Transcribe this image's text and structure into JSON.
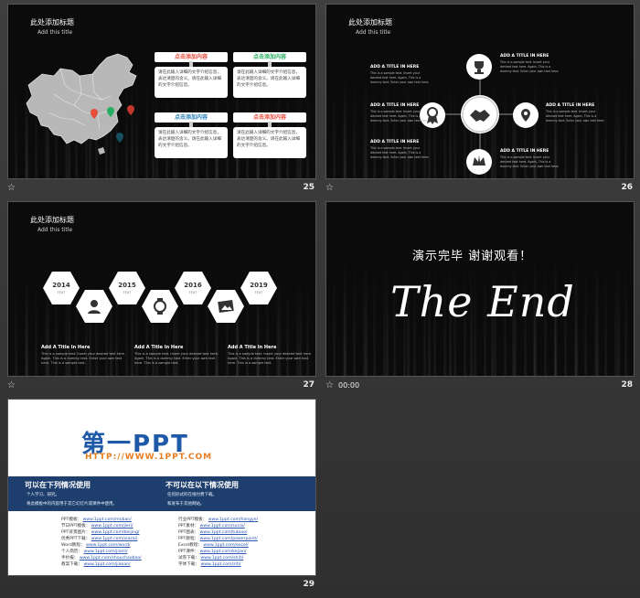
{
  "slides": [
    {
      "number": "25",
      "title": "此处添加标题",
      "subtitle": "Add this title",
      "cards": [
        {
          "header": "点击添加内容",
          "header_color": "#e74c3c",
          "body": "请在此输入详细的文字介绍信息，表达清楚的含义。请在此输入详细的文字介绍信息。"
        },
        {
          "header": "点击添加内容",
          "header_color": "#27ae60",
          "body": "请在此输入详细的文字介绍信息，表达清楚的含义。请在此输入详细的文字介绍信息。"
        },
        {
          "header": "点击添加内容",
          "header_color": "#2980b9",
          "body": "请在此输入详细的文字介绍信息，表达清楚的含义。请在此输入详细的文字介绍信息。"
        },
        {
          "header": "点击添加内容",
          "header_color": "#e74c3c",
          "body": "请在此输入详细的文字介绍信息，表达清楚的含义。请在此输入详细的文字介绍信息。"
        }
      ]
    },
    {
      "number": "26",
      "title": "此处添加标题",
      "subtitle": "Add this title",
      "blocks": [
        {
          "title": "ADD A TITLE IN HERE",
          "desc": "This is a sample text. Insert your desired text here. Again, This is a dummy text. Enter your own text here."
        },
        {
          "title": "ADD A TITLE IN HERE",
          "desc": "This is a sample text. Insert your desired text here. Again, This is a dummy text. Enter your own text here."
        },
        {
          "title": "ADD A TITLE IN HERE",
          "desc": "This is a sample text. Insert your desired text here. Again, This is a dummy text. Enter your own text here."
        },
        {
          "title": "ADD A TITLE IN HERE",
          "desc": "This is a sample text. Insert your desired text here. Again, This is a dummy text. Enter your own text here."
        },
        {
          "title": "ADD A TITLE IN HERE",
          "desc": "This is a sample text. Insert your desired text here. Again, This is a dummy text. Enter your own text here."
        },
        {
          "title": "ADD A TITLE IN HERE",
          "desc": "This is a sample text. Insert your desired text here. Again, This is a dummy text. Enter your own text here."
        }
      ]
    },
    {
      "number": "27",
      "title": "此处添加标题",
      "subtitle": "Add this title",
      "years": [
        {
          "year": "2014",
          "text": "TEXT"
        },
        {
          "year": "2015",
          "text": "TEXT"
        },
        {
          "year": "2016",
          "text": "TEXT"
        },
        {
          "year": "2019",
          "text": "TEXT"
        }
      ],
      "columns": [
        {
          "title": "Add A Title In Here",
          "desc": "This is a sample text. Insert your desired text here. Again, This is a dummy text. Enter your own text here. This is a sample text."
        },
        {
          "title": "Add A Title In Here",
          "desc": "This is a sample text. Insert your desired text here. Again, This is a dummy text. Enter your own text here. This is a sample text."
        },
        {
          "title": "Add A Title In Here",
          "desc": "This is a sample text. Insert your desired text here. Again, This is a dummy text. Enter your own text here. This is a sample text."
        }
      ]
    },
    {
      "number": "28",
      "time": "00:00",
      "heading": "演示完毕  谢谢观看！",
      "script": "The End"
    },
    {
      "number": "29",
      "logo_cn": "第一PPT",
      "url": "HTTP://WWW.1PPT.COM",
      "can_title": "可以在下列情况使用",
      "can_items": [
        "个人学习、研究。",
        "将此模板中的内容用于其它幻灯片或课件中使用。"
      ],
      "cannot_title": "不可以在以下情况使用",
      "cannot_items": [
        "任何形式的在线付费下载。",
        "和发布于其他网站。"
      ],
      "links_left": [
        {
          "label": "PPT模板：",
          "url": "www.1ppt.com/moban/"
        },
        {
          "label": "节日PPT模板：",
          "url": "www.1ppt.com/jieri/"
        },
        {
          "label": "PPT背景图片：",
          "url": "www.1ppt.com/beijing/"
        },
        {
          "label": "优秀PPT下载：",
          "url": "www.1ppt.com/xiazai/"
        },
        {
          "label": "Word教程：",
          "url": "www.1ppt.com/word/"
        },
        {
          "label": "个人简历：",
          "url": "www.1ppt.com/jianli/"
        },
        {
          "label": "手抄报：",
          "url": "www.1ppt.com/shouchaobao/"
        },
        {
          "label": "教案下载：",
          "url": "www.1ppt.com/jiaoan/"
        }
      ],
      "links_right": [
        {
          "label": "行业PPT模板：",
          "url": "www.1ppt.com/hangye/"
        },
        {
          "label": "PPT素材：",
          "url": "www.1ppt.com/sucai/"
        },
        {
          "label": "PPT图表：",
          "url": "www.1ppt.com/tubiao/"
        },
        {
          "label": "PPT教程：",
          "url": "www.1ppt.com/powerpoint/"
        },
        {
          "label": "Excel教程：",
          "url": "www.1ppt.com/excel/"
        },
        {
          "label": "PPT课件：",
          "url": "www.1ppt.com/kejian/"
        },
        {
          "label": "试卷下载：",
          "url": "www.1ppt.com/shiti/"
        },
        {
          "label": "字体下载：",
          "url": "www.1ppt.com/ziti/"
        }
      ]
    }
  ],
  "colors": {
    "accent_red": "#e74c3c",
    "accent_green": "#27ae60",
    "accent_blue": "#2980b9",
    "logo_blue": "#1f5aa8",
    "bar_navy": "#1e3f6d",
    "url_orange": "#e67e22"
  }
}
